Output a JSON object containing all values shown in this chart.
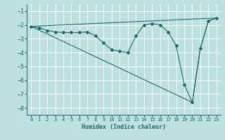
{
  "xlabel": "Humidex (Indice chaleur)",
  "xlim": [
    -0.5,
    23.5
  ],
  "ylim": [
    -8.5,
    -0.5
  ],
  "yticks": [
    -8,
    -7,
    -6,
    -5,
    -4,
    -3,
    -2,
    -1
  ],
  "xticks": [
    0,
    1,
    2,
    3,
    4,
    5,
    6,
    7,
    8,
    9,
    10,
    11,
    12,
    13,
    14,
    15,
    16,
    17,
    18,
    19,
    20,
    21,
    22,
    23
  ],
  "bg_color": "#bde0e0",
  "grid_color": "#ffffff",
  "line_color": "#1e6b6b",
  "series1_x": [
    0,
    1,
    2,
    3,
    4,
    5,
    6,
    7,
    8,
    9,
    10,
    11,
    12,
    13,
    14,
    15,
    16,
    17,
    18,
    19,
    20,
    21,
    22,
    23
  ],
  "series1_y": [
    -2.1,
    -2.2,
    -2.4,
    -2.5,
    -2.55,
    -2.55,
    -2.55,
    -2.5,
    -2.8,
    -3.3,
    -3.8,
    -3.9,
    -4.0,
    -2.8,
    -2.0,
    -1.9,
    -2.0,
    -2.5,
    -3.5,
    -6.3,
    -7.6,
    -3.7,
    -1.7,
    -1.5
  ],
  "line2_x": [
    0,
    20
  ],
  "line2_y": [
    -2.1,
    -7.6
  ],
  "line3_x": [
    0,
    23
  ],
  "line3_y": [
    -2.1,
    -1.5
  ],
  "line4_x": [
    20,
    21,
    22,
    23
  ],
  "line4_y": [
    -7.6,
    -3.7,
    -1.7,
    -1.5
  ]
}
